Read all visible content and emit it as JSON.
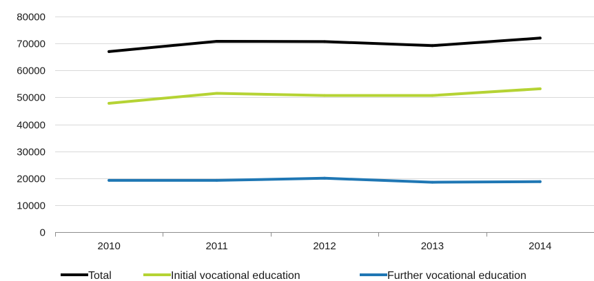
{
  "chart_data": {
    "type": "line",
    "title": "",
    "xlabel": "",
    "ylabel": "",
    "categories": [
      "2010",
      "2011",
      "2012",
      "2013",
      "2014"
    ],
    "ylim": [
      0,
      80000
    ],
    "yticks": [
      0,
      10000,
      20000,
      30000,
      40000,
      50000,
      60000,
      70000,
      80000
    ],
    "grid": true,
    "legend_position": "bottom",
    "series": [
      {
        "name": "Total",
        "color": "#000000",
        "values": [
          67000,
          70800,
          70700,
          69200,
          72000
        ]
      },
      {
        "name": "Initial vocational education",
        "color": "#b5d334",
        "values": [
          47800,
          51500,
          50700,
          50700,
          53200
        ]
      },
      {
        "name": "Further vocational education",
        "color": "#1f77b4",
        "values": [
          19200,
          19200,
          20000,
          18500,
          18700
        ]
      }
    ]
  }
}
